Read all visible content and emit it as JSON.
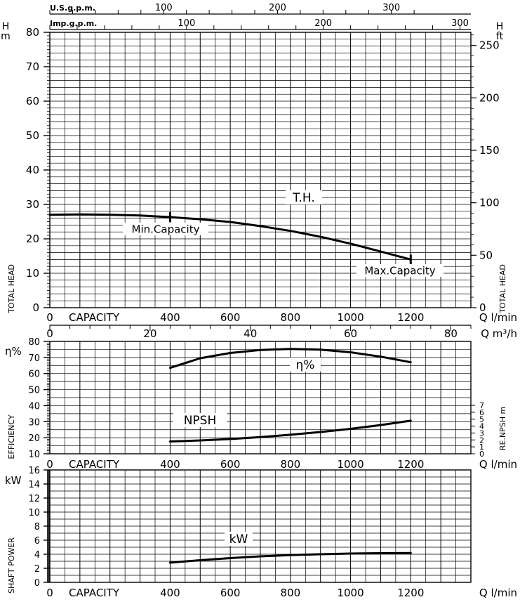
{
  "chart_data": [
    {
      "type": "line",
      "panel": "total-head",
      "xlabel": "CAPACITY",
      "x_unit": "Q l/min",
      "xlim": [
        0,
        1400
      ],
      "x_ticks": [
        0,
        400,
        600,
        800,
        1000,
        1200
      ],
      "ylabel_left": "TOTAL HEAD",
      "ylabel_right": "TOTAL HEAD",
      "y_unit_left": "H m",
      "y_unit_right": "H ft",
      "ylim": [
        0,
        80
      ],
      "y_ticks": [
        0,
        10,
        20,
        30,
        40,
        50,
        60,
        70,
        80
      ],
      "y2_ticks": [
        0,
        50,
        100,
        150,
        200,
        250
      ],
      "top_axis_usgpm_label": "U.S.g.p.m.",
      "top_axis_usgpm_ticks": [
        100,
        200,
        300
      ],
      "top_axis_impgpm_label": "Imp.g.p.m.",
      "top_axis_impgpm_ticks": [
        100,
        200,
        300
      ],
      "bottom_axis_m3h_label": "Q m³/h",
      "bottom_axis_m3h_ticks": [
        0,
        20,
        40,
        60,
        80
      ],
      "grid": true,
      "series": [
        {
          "name": "T.H.",
          "x": [
            0,
            100,
            200,
            300,
            400,
            500,
            600,
            700,
            800,
            900,
            1000,
            1100,
            1200
          ],
          "values": [
            27,
            27.1,
            27,
            26.8,
            26.3,
            25.7,
            24.9,
            23.7,
            22.3,
            20.6,
            18.6,
            16.3,
            14
          ]
        }
      ],
      "annotations": [
        {
          "text": "Min.Capacity",
          "x": 400,
          "y": 26.3
        },
        {
          "text": "Max.Capacity",
          "x": 1200,
          "y": 14
        }
      ]
    },
    {
      "type": "line",
      "panel": "efficiency-npsh",
      "xlabel": "CAPACITY",
      "x_unit": "Q l/min",
      "xlim": [
        0,
        1400
      ],
      "x_ticks": [
        0,
        400,
        600,
        800,
        1000,
        1200
      ],
      "ylabel_left": "EFFICIENCY",
      "ylabel_right": "RE.NPSH m",
      "y_unit_left": "η%",
      "ylim": [
        10,
        80
      ],
      "y_ticks": [
        10,
        20,
        30,
        40,
        50,
        60,
        70,
        80
      ],
      "y2_ticks": [
        0,
        1,
        2,
        3,
        4,
        5,
        6,
        7
      ],
      "grid": true,
      "series": [
        {
          "name": "η%",
          "x": [
            400,
            500,
            600,
            700,
            800,
            900,
            1000,
            1100,
            1200
          ],
          "values": [
            63.5,
            69.5,
            72.8,
            74.6,
            75.3,
            74.9,
            73.2,
            70.5,
            67
          ]
        },
        {
          "name": "NPSH",
          "x": [
            400,
            500,
            600,
            700,
            800,
            900,
            1000,
            1100,
            1200
          ],
          "values": [
            1.78,
            1.93,
            2.13,
            2.4,
            2.75,
            3.15,
            3.6,
            4.15,
            4.78
          ]
        }
      ]
    },
    {
      "type": "line",
      "panel": "shaft-power",
      "xlabel": "CAPACITY",
      "x_unit": "Q l/min",
      "xlim": [
        0,
        1400
      ],
      "x_ticks": [
        0,
        400,
        600,
        800,
        1000,
        1200
      ],
      "ylabel_left": "SHAFT POWER",
      "y_unit_left": "kW",
      "ylim": [
        0,
        16
      ],
      "y_ticks": [
        0,
        2,
        4,
        6,
        8,
        10,
        12,
        14,
        16
      ],
      "grid": true,
      "series": [
        {
          "name": "kW",
          "x": [
            400,
            500,
            600,
            700,
            800,
            900,
            1000,
            1100,
            1200
          ],
          "values": [
            2.8,
            3.15,
            3.45,
            3.7,
            3.88,
            4.0,
            4.1,
            4.15,
            4.18
          ]
        }
      ]
    }
  ]
}
